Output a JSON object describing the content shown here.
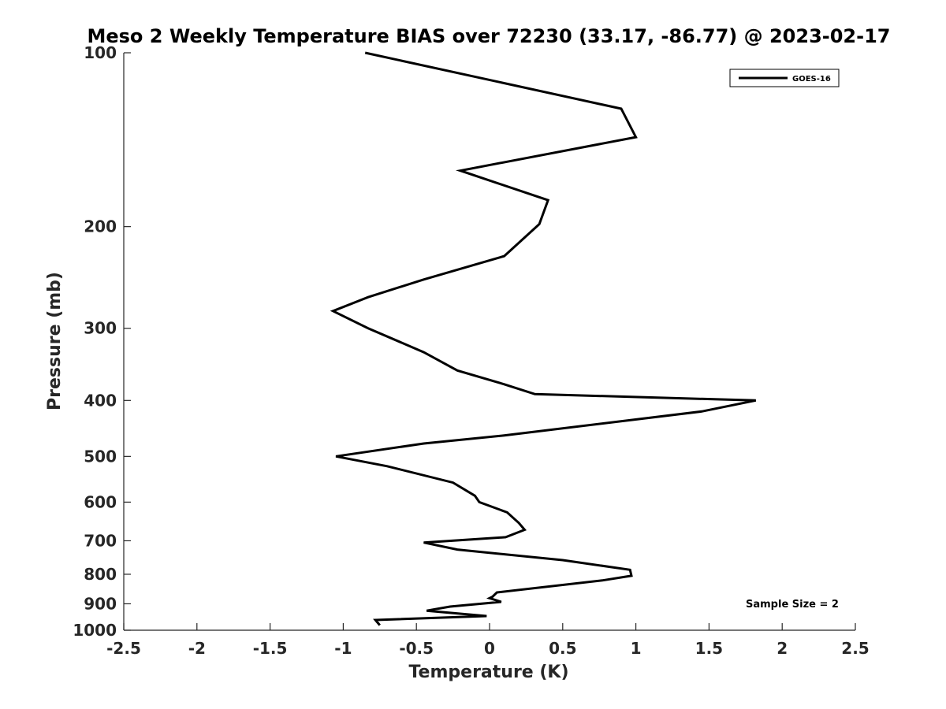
{
  "chart_data": {
    "type": "line",
    "title": "Meso 2 Weekly Temperature BIAS over 72230 (33.17, -86.77) @ 2023-02-17",
    "xlabel": "Temperature (K)",
    "ylabel": "Pressure (mb)",
    "xlim": [
      -2.5,
      2.5
    ],
    "ylim": [
      100,
      1000
    ],
    "y_scale": "log",
    "y_reversed": true,
    "x_ticks": [
      -2.5,
      -2,
      -1.5,
      -1,
      -0.5,
      0,
      0.5,
      1,
      1.5,
      2,
      2.5
    ],
    "x_tick_labels": [
      "-2.5",
      "-2",
      "-1.5",
      "-1",
      "-0.5",
      "0",
      "0.5",
      "1",
      "1.5",
      "2",
      "2.5"
    ],
    "y_ticks": [
      100,
      200,
      300,
      400,
      500,
      600,
      700,
      800,
      900,
      1000
    ],
    "y_tick_labels": [
      "100",
      "200",
      "300",
      "400",
      "500",
      "600",
      "700",
      "800",
      "900",
      "1000"
    ],
    "grid": false,
    "legend_position": "top-right",
    "series": [
      {
        "name": "GOES-16",
        "color": "#000000",
        "x": [
          -0.85,
          0.9,
          1.0,
          -0.2,
          0.4,
          0.34,
          0.1,
          -0.45,
          -0.83,
          -1.07,
          -0.83,
          -0.45,
          -0.22,
          0.1,
          0.31,
          1.82,
          1.45,
          0.1,
          -0.45,
          -1.05,
          -0.7,
          -0.25,
          -0.1,
          -0.07,
          0.12,
          0.2,
          0.24,
          0.11,
          -0.45,
          -0.22,
          0.5,
          0.96,
          0.97,
          0.77,
          0.05,
          0.02,
          0.0,
          0.08,
          -0.27,
          -0.43,
          -0.02,
          -0.78,
          -0.75
        ],
        "y": [
          100,
          125,
          140,
          160,
          180,
          198,
          225,
          247,
          265,
          280,
          300,
          330,
          355,
          375,
          390,
          400,
          418,
          460,
          475,
          500,
          520,
          555,
          585,
          600,
          625,
          652,
          670,
          690,
          705,
          725,
          756,
          786,
          805,
          820,
          860,
          875,
          880,
          893,
          910,
          925,
          945,
          960,
          980
        ]
      }
    ],
    "annotations": [
      "Sample Size = 2"
    ]
  }
}
